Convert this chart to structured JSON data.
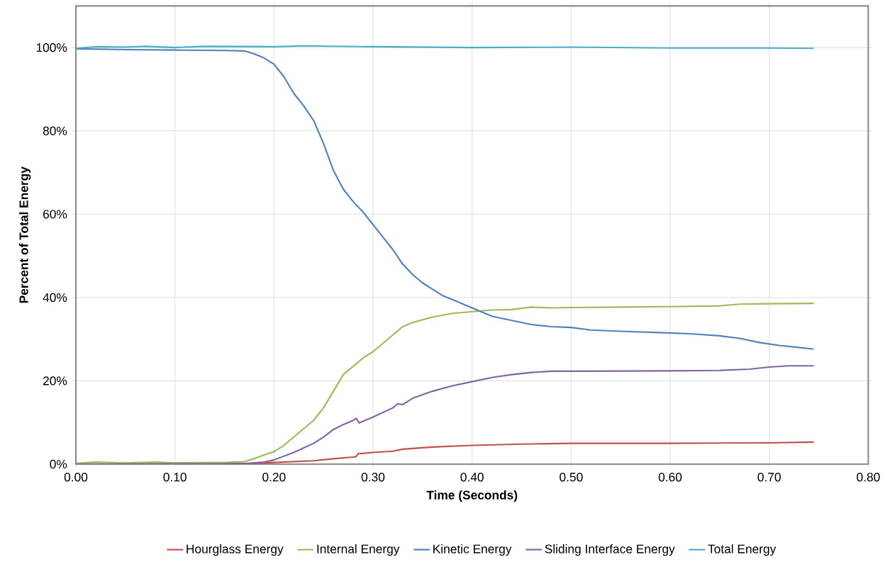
{
  "chart_data": {
    "type": "line",
    "xlabel": "Time (Seconds)",
    "ylabel": "Percent of Total Energy",
    "xlim": [
      0,
      0.8
    ],
    "ylim": [
      0,
      110
    ],
    "xticks": [
      {
        "value": 0,
        "label": "0.00"
      },
      {
        "value": 0.1,
        "label": "0.10"
      },
      {
        "value": 0.2,
        "label": "0.20"
      },
      {
        "value": 0.3,
        "label": "0.30"
      },
      {
        "value": 0.4,
        "label": "0.40"
      },
      {
        "value": 0.5,
        "label": "0.50"
      },
      {
        "value": 0.6,
        "label": "0.60"
      },
      {
        "value": 0.7,
        "label": "0.70"
      },
      {
        "value": 0.8,
        "label": "0.80"
      }
    ],
    "yticks": [
      {
        "value": 0,
        "label": "0%"
      },
      {
        "value": 20,
        "label": "20%"
      },
      {
        "value": 40,
        "label": "40%"
      },
      {
        "value": 60,
        "label": "60%"
      },
      {
        "value": 80,
        "label": "80%"
      },
      {
        "value": 100,
        "label": "100%"
      }
    ],
    "grid": true,
    "legend": "bottom",
    "series": [
      {
        "name": "Hourglass Energy",
        "color": "#c0504d",
        "x": [
          0,
          0.18,
          0.2,
          0.24,
          0.26,
          0.28,
          0.283,
          0.285,
          0.3,
          0.32,
          0.33,
          0.36,
          0.4,
          0.45,
          0.5,
          0.6,
          0.7,
          0.745
        ],
        "values": [
          0,
          0.2,
          0.4,
          0.8,
          1.3,
          1.7,
          1.8,
          2.5,
          2.8,
          3.1,
          3.6,
          4.1,
          4.5,
          4.8,
          5.0,
          5.0,
          5.1,
          5.3
        ]
      },
      {
        "name": "Internal Energy",
        "color": "#9bbb59",
        "x": [
          0,
          0.02,
          0.05,
          0.08,
          0.1,
          0.15,
          0.17,
          0.18,
          0.19,
          0.2,
          0.21,
          0.22,
          0.23,
          0.24,
          0.25,
          0.26,
          0.27,
          0.28,
          0.29,
          0.3,
          0.31,
          0.32,
          0.33,
          0.34,
          0.36,
          0.38,
          0.4,
          0.42,
          0.44,
          0.46,
          0.48,
          0.5,
          0.55,
          0.6,
          0.65,
          0.67,
          0.7,
          0.745
        ],
        "values": [
          0.2,
          0.5,
          0.3,
          0.5,
          0.3,
          0.4,
          0.6,
          1.3,
          2.2,
          3.0,
          4.5,
          6.5,
          8.5,
          10.5,
          13.5,
          17.5,
          21.5,
          23.5,
          25.5,
          27,
          29,
          31,
          33,
          34,
          35.3,
          36.2,
          36.6,
          37,
          37.1,
          37.7,
          37.5,
          37.6,
          37.7,
          37.8,
          38.0,
          38.4,
          38.5,
          38.6
        ]
      },
      {
        "name": "Kinetic Energy",
        "color": "#4f81bd",
        "x": [
          0,
          0.05,
          0.1,
          0.15,
          0.17,
          0.18,
          0.19,
          0.2,
          0.21,
          0.22,
          0.23,
          0.24,
          0.25,
          0.26,
          0.27,
          0.28,
          0.29,
          0.3,
          0.31,
          0.32,
          0.33,
          0.34,
          0.35,
          0.36,
          0.37,
          0.38,
          0.4,
          0.42,
          0.44,
          0.46,
          0.48,
          0.5,
          0.52,
          0.55,
          0.6,
          0.62,
          0.65,
          0.67,
          0.69,
          0.71,
          0.73,
          0.745
        ],
        "values": [
          99.7,
          99.5,
          99.4,
          99.3,
          99.2,
          98.5,
          97.5,
          96,
          93,
          89,
          86,
          82.5,
          77,
          70.5,
          66,
          63,
          60.5,
          57.5,
          54.5,
          51.5,
          48,
          45.5,
          43.5,
          42,
          40.5,
          39.5,
          37.5,
          35.5,
          34.5,
          33.5,
          33,
          32.8,
          32.2,
          31.9,
          31.5,
          31.3,
          30.8,
          30.2,
          29.2,
          28.5,
          28.0,
          27.6
        ]
      },
      {
        "name": "Sliding Interface Energy",
        "color": "#8064a2",
        "x": [
          0,
          0.17,
          0.19,
          0.2,
          0.22,
          0.24,
          0.25,
          0.26,
          0.27,
          0.28,
          0.283,
          0.286,
          0.3,
          0.32,
          0.325,
          0.33,
          0.34,
          0.36,
          0.38,
          0.4,
          0.42,
          0.44,
          0.46,
          0.48,
          0.5,
          0.6,
          0.65,
          0.68,
          0.7,
          0.72,
          0.745
        ],
        "values": [
          0,
          0.1,
          0.5,
          1.0,
          2.8,
          5,
          6.5,
          8.3,
          9.5,
          10.5,
          11,
          9.9,
          11.3,
          13.5,
          14.5,
          14.3,
          15.8,
          17.5,
          18.8,
          19.8,
          20.8,
          21.5,
          22,
          22.3,
          22.3,
          22.4,
          22.5,
          22.8,
          23.3,
          23.6,
          23.6
        ]
      },
      {
        "name": "Total Energy",
        "color": "#4bacc6",
        "x": [
          0,
          0.02,
          0.05,
          0.07,
          0.1,
          0.13,
          0.2,
          0.23,
          0.3,
          0.4,
          0.5,
          0.6,
          0.7,
          0.745
        ],
        "values": [
          99.8,
          100.2,
          100.1,
          100.3,
          100,
          100.3,
          100.2,
          100.4,
          100.2,
          100.0,
          100.1,
          99.9,
          99.9,
          99.8
        ]
      }
    ]
  }
}
